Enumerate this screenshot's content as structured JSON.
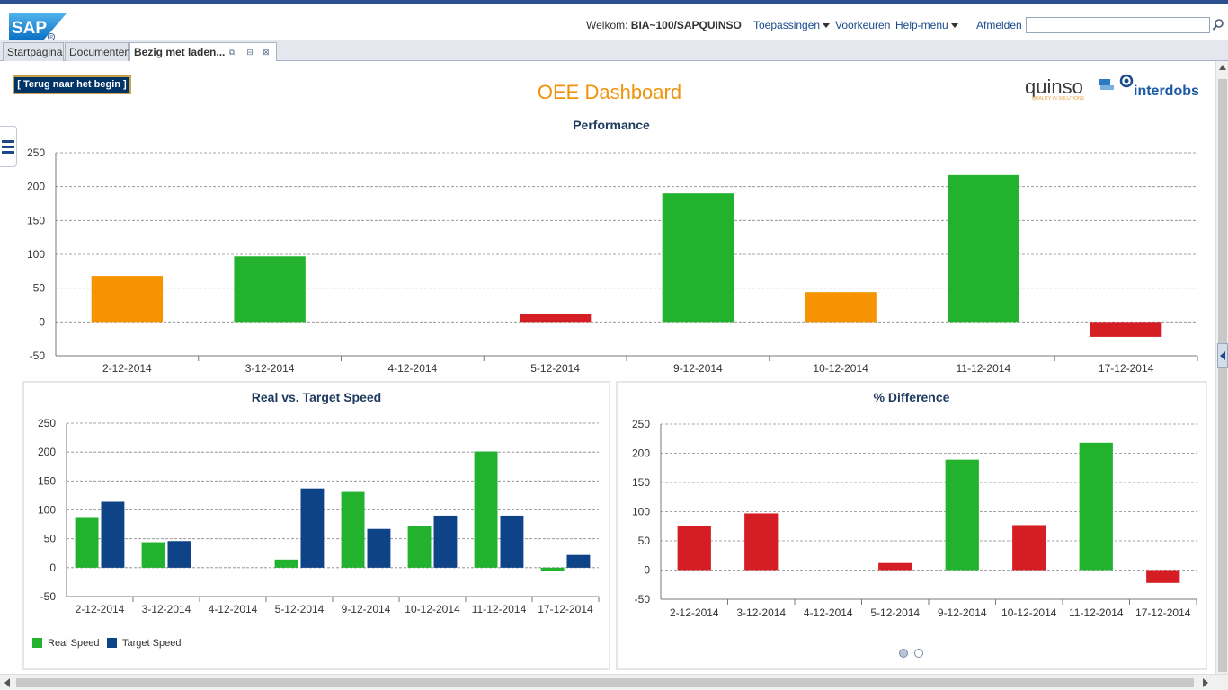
{
  "header": {
    "welcome_prefix": "Welkom:",
    "user": "BIA~100/SAPQUINSO",
    "links": {
      "applications": "Toepassingen",
      "preferences": "Voorkeuren",
      "help": "Help-menu",
      "logout": "Afmelden"
    },
    "search": {
      "value": "",
      "placeholder": ""
    }
  },
  "logo": {
    "sap": "SAP",
    "quinso": "quinso",
    "quinso_tagline": "QUALITY IN SOLUTIONS",
    "interdobs": "interdobs"
  },
  "tabs": [
    {
      "label": "Startpagina"
    },
    {
      "label": "Documenten"
    },
    {
      "label": "Bezig met laden..."
    }
  ],
  "page": {
    "back_button": "[ Terug naar het begin ]",
    "title": "OEE Dashboard"
  },
  "colors": {
    "green": "#22b22e",
    "orange": "#f59400",
    "red": "#d41e24",
    "blue": "#0f4388",
    "title_orange": "#f0920a",
    "grid": "#888888"
  },
  "chart_data": [
    {
      "type": "bar",
      "title": "Performance",
      "categories": [
        "2-12-2014",
        "3-12-2014",
        "4-12-2014",
        "5-12-2014",
        "9-12-2014",
        "10-12-2014",
        "11-12-2014",
        "17-12-2014"
      ],
      "series": [
        {
          "values": [
            68,
            97,
            0,
            12,
            190,
            44,
            217,
            -22
          ]
        }
      ],
      "bar_colors": [
        "orange",
        "green",
        "green",
        "red",
        "green",
        "orange",
        "green",
        "red"
      ],
      "ylim": [
        -50,
        250
      ],
      "yticks": [
        -50,
        0,
        50,
        100,
        150,
        200,
        250
      ],
      "grid": true
    },
    {
      "type": "bar",
      "title": "Real vs. Target Speed",
      "categories": [
        "2-12-2014",
        "3-12-2014",
        "4-12-2014",
        "5-12-2014",
        "9-12-2014",
        "10-12-2014",
        "11-12-2014",
        "17-12-2014"
      ],
      "series": [
        {
          "name": "Real Speed",
          "values": [
            86,
            44,
            0,
            14,
            131,
            72,
            201,
            -5
          ],
          "color": "green"
        },
        {
          "name": "Target Speed",
          "values": [
            114,
            46,
            0,
            137,
            67,
            90,
            90,
            22
          ],
          "color": "blue"
        }
      ],
      "ylim": [
        -50,
        250
      ],
      "yticks": [
        -50,
        0,
        50,
        100,
        150,
        200,
        250
      ],
      "grid": true,
      "legend": "bottom-left"
    },
    {
      "type": "bar",
      "title": "% Difference",
      "categories": [
        "2-12-2014",
        "3-12-2014",
        "4-12-2014",
        "5-12-2014",
        "9-12-2014",
        "10-12-2014",
        "11-12-2014",
        "17-12-2014"
      ],
      "series": [
        {
          "values": [
            76,
            97,
            0,
            12,
            189,
            77,
            218,
            -22
          ]
        }
      ],
      "bar_colors": [
        "red",
        "red",
        "red",
        "red",
        "green",
        "red",
        "green",
        "red"
      ],
      "ylim": [
        -50,
        250
      ],
      "yticks": [
        -50,
        0,
        50,
        100,
        150,
        200,
        250
      ],
      "grid": true
    }
  ],
  "pager": {
    "pages": 2,
    "active": 1
  }
}
